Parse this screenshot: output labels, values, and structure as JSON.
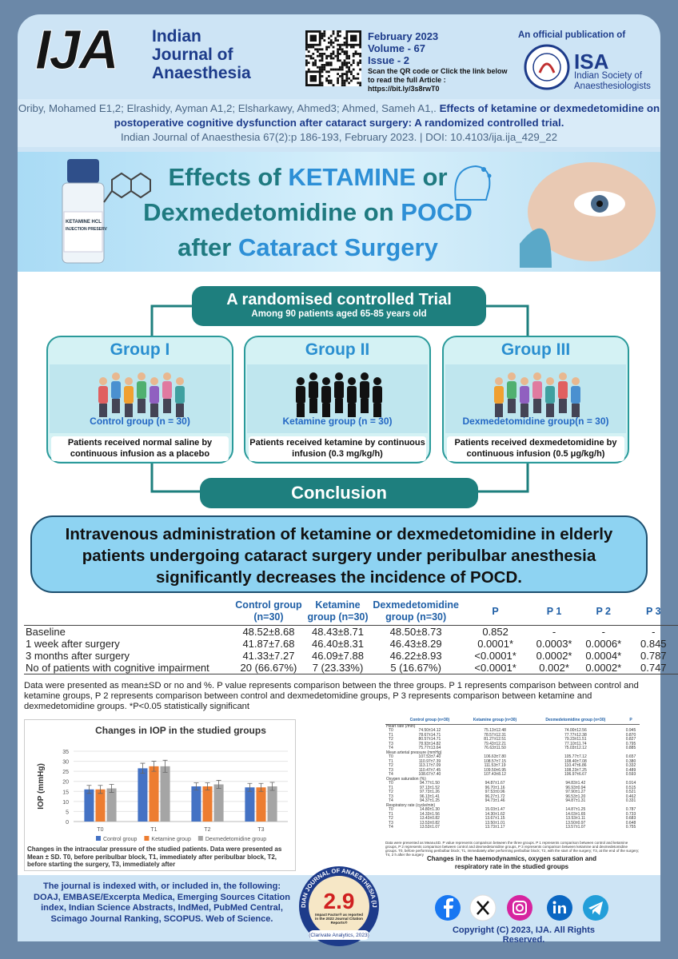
{
  "header": {
    "logo": "IJA",
    "journal_name": [
      "Indian",
      "Journal of",
      "Anaesthesia"
    ],
    "issue": [
      "February 2023",
      "Volume - 67",
      "Issue - 2"
    ],
    "scan_text": "Scan the QR code or Click the link below to read the full Article :",
    "link": "https://bit.ly/3s8rwT0",
    "official": "An official publication of",
    "isa": "ISA",
    "isa_name": "Indian Society of Anaesthesiologists"
  },
  "citation": {
    "authors": "Oriby, Mohamed E1,2; Elrashidy, Ayman A1,2; Elsharkawy, Ahmed3; Ahmed, Sameh A1,.",
    "title": "Effects of ketamine or dexmedetomidine on postoperative cognitive dysfunction after cataract surgery: A randomized controlled trial.",
    "source": "Indian Journal of Anaesthesia 67(2):p 186-193, February 2023. | DOI: 10.4103/ija.ija_429_22"
  },
  "banner": {
    "lines": [
      [
        "Effects of ",
        "KETAMINE",
        " or"
      ],
      [
        "Dexmedetomidine on ",
        "POCD"
      ],
      [
        "after ",
        "Cataract Surgery"
      ]
    ],
    "vial_label": [
      "KETAMINE HCL",
      "INJECTION PRESERV"
    ]
  },
  "trial": {
    "title": "A randomised controlled Trial",
    "subtitle": "Among 90 patients aged 65-85 years old",
    "groups": [
      {
        "name": "Group I",
        "label": "Control group (n = 30)",
        "description": "Patients received normal saline by continuous infusion as a placebo"
      },
      {
        "name": "Group II",
        "label": "Ketamine group (n = 30)",
        "description": "Patients received ketamine by continuous infusion (0.3 mg/kg/h)"
      },
      {
        "name": "Group III",
        "label": "Dexmedetomidine group(n = 30)",
        "description": "Patients received dexmedetomidine by continuous infusion (0.5 μg/kg/h)"
      }
    ]
  },
  "conclusion": {
    "heading": "Conclusion",
    "text": "Intravenous administration of ketamine or dexmedetomidine in elderly patients undergoing cataract surgery under peribulbar anesthesia significantly decreases the incidence of POCD."
  },
  "table": {
    "columns": [
      "Control group (n=30)",
      "Ketamine group (n=30)",
      "Dexmedetomidine group (n=30)",
      "P",
      "P 1",
      "P 2",
      "P 3"
    ],
    "rows": [
      {
        "label": "Baseline",
        "cells": [
          "48.52±8.68",
          "48.43±8.71",
          "48.50±8.73",
          "0.852",
          "-",
          "-",
          "-"
        ]
      },
      {
        "label": "1 week after surgery",
        "cells": [
          "41.87±7.68",
          "46.40±8.31",
          "46.43±8.29",
          "0.0001*",
          "0.0003*",
          "0.0006*",
          "0.845"
        ]
      },
      {
        "label": "3 months after surgery",
        "cells": [
          "41.33±7.27",
          "46.09±7.88",
          "46.22±8.93",
          "<0.0001*",
          "0.0002*",
          "0.0004*",
          "0.787"
        ]
      },
      {
        "label": "No of patients with cognitive impairment",
        "cells": [
          "20 (66.67%)",
          "7 (23.33%)",
          "5 (16.67%)",
          "<0.0001*",
          "0.002*",
          "0.0002*",
          "0.747"
        ]
      }
    ],
    "footnote": "Data were presented as mean±SD or no and %. P value represents comparison between the three groups. P 1 represents comparison between control and ketamine groups, P 2 represents comparison between control and dexmedetomidine groups, P 3 represents comparison between ketamine and dexmedetomidine groups. *P<0.05 statistically significant"
  },
  "chart_data": {
    "type": "bar",
    "title": "Changes in IOP in the studied groups",
    "y_label": "IOP (mmHg)",
    "categories": [
      "T0",
      "T1",
      "T2",
      "T3"
    ],
    "series": [
      {
        "name": "Control group",
        "color": "#4472c4",
        "values": [
          16,
          26.5,
          17.5,
          17
        ],
        "errors": [
          2,
          2.5,
          1.8,
          2
        ]
      },
      {
        "name": "Ketamine group",
        "color": "#ed7d31",
        "values": [
          16,
          27.5,
          17.5,
          17
        ],
        "errors": [
          2,
          2.5,
          1.8,
          2
        ]
      },
      {
        "name": "Dexmedetomidine group",
        "color": "#a5a5a5",
        "values": [
          16.5,
          27.5,
          18.5,
          17.5
        ],
        "errors": [
          2,
          3,
          2,
          2
        ]
      }
    ],
    "ylim": [
      0,
      35
    ],
    "yticks": [
      0,
      5,
      10,
      15,
      20,
      25,
      30,
      35
    ],
    "grid": true,
    "legend": "bottom",
    "caption": "Changes in the intraocular pressure of the studied patients. Data were presented as Mean ± SD. T0, before peribulbar block, T1, immediately after peribulbar block, T2, before starting the surgery, T3, immediately after"
  },
  "haemodynamics": {
    "columns": [
      "Control group (n=30)",
      "Ketamine group (n=30)",
      "Dexmedetomidine group (n=30)",
      "P"
    ],
    "sections": [
      {
        "title": "Heart rate (/min)",
        "rows": [
          [
            "T0",
            "74.50±14.12",
            "75.13±12.48",
            "74.00±12.56",
            "0.945"
          ],
          [
            "T1",
            "78.67±14.71",
            "78.57±12.31",
            "77.77±12.38",
            "0.870"
          ],
          [
            "T2",
            "80.57±14.71",
            "81.27±12.51",
            "79.23±11.51",
            "0.827"
          ],
          [
            "T3",
            "78.93±14.82",
            "79.43±12.21",
            "77.10±11.74",
            "0.795"
          ],
          [
            "T4",
            "75.77±13.64",
            "76.63±11.50",
            "75.03±12.12",
            "0.885"
          ]
        ]
      },
      {
        "title": "Mean arterial pressure (mmHg)",
        "rows": [
          [
            "T0",
            "107.53±7.40",
            "106.63±7.80",
            "105.77±7.12",
            "0.657"
          ],
          [
            "T1",
            "110.97±7.39",
            "108.57±7.15",
            "108.40±7.08",
            "0.380"
          ],
          [
            "T2",
            "113.17±7.09",
            "111.53±7.19",
            "110.47±6.86",
            "0.332"
          ],
          [
            "T3",
            "110.47±7.45",
            "109.50±6.95",
            "108.23±7.25",
            "0.489"
          ],
          [
            "T4",
            "108.67±7.40",
            "107.43±8.12",
            "106.97±6.67",
            "0.593"
          ]
        ]
      },
      {
        "title": "Oxygen saturation (%)",
        "rows": [
          [
            "T0",
            "94.77±1.50",
            "94.87±1.67",
            "94.83±1.42",
            "0.914"
          ],
          [
            "T1",
            "97.13±1.52",
            "96.70±1.16",
            "96.93±0.94",
            "0.515"
          ],
          [
            "T2",
            "97.73±1.26",
            "97.53±0.96",
            "97.90±1.27",
            "0.521"
          ],
          [
            "T3",
            "96.13±1.41",
            "96.27±1.72",
            "96.53±1.20",
            "0.462"
          ],
          [
            "T4",
            "94.37±1.25",
            "94.73±1.46",
            "94.87±1.31",
            "0.331"
          ]
        ]
      },
      {
        "title": "Respiratory rate (cycle/min)",
        "rows": [
          [
            "T0",
            "14.80±1.30",
            "15.03±1.47",
            "14.87±1.25",
            "0.787"
          ],
          [
            "T1",
            "14.33±1.56",
            "14.30±1.62",
            "14.03±1.65",
            "0.733"
          ],
          [
            "T2",
            "13.43±0.82",
            "13.67±1.15",
            "13.53±1.11",
            "0.683"
          ],
          [
            "T3",
            "13.53±0.82",
            "13.50±1.01",
            "13.50±0.97",
            "0.648"
          ],
          [
            "T4",
            "13.53±1.07",
            "13.73±1.17",
            "13.57±1.07",
            "0.755"
          ]
        ]
      }
    ],
    "footnote": "Data were presented as Mean±SD. P value represents comparison between the three groups. P 1 represents comparison between control and ketamine groups, P 2 represents comparison between control and dexmedetomidine groups, P 3 represents comparison between ketamine and dexmedetomidine groups. T0, before performing peribulbar block; T1, immediately after performing peribulbar block; T2, with the start of the surgery; T3, at the end of the surgery; T4, 2 h after the surgery",
    "caption": "Changes in the haemodynamics, oxygen saturation and respiratory rate in the studied groups"
  },
  "footer": {
    "index_text": "The journal is indexed with, or included in, the following: DOAJ, EMBASE/Excerpta Medica, Emerging Sources Citation index, Indian Science Abstracts, IndMed, PubMed Central, Scimago Journal Ranking, SCOPUS. Web of Science.",
    "badge": {
      "ring": "INDIAN JOURNAL OF ANAESTHESIA (IJA)",
      "value": "2.9",
      "note": "Impact Factor® as reported in the 2022 Journal Citation Reports®",
      "source": "(Clarivate Analytics, 2023)"
    },
    "copyright": "Copyright (C) 2023, IJA. All Rights Reserved."
  }
}
